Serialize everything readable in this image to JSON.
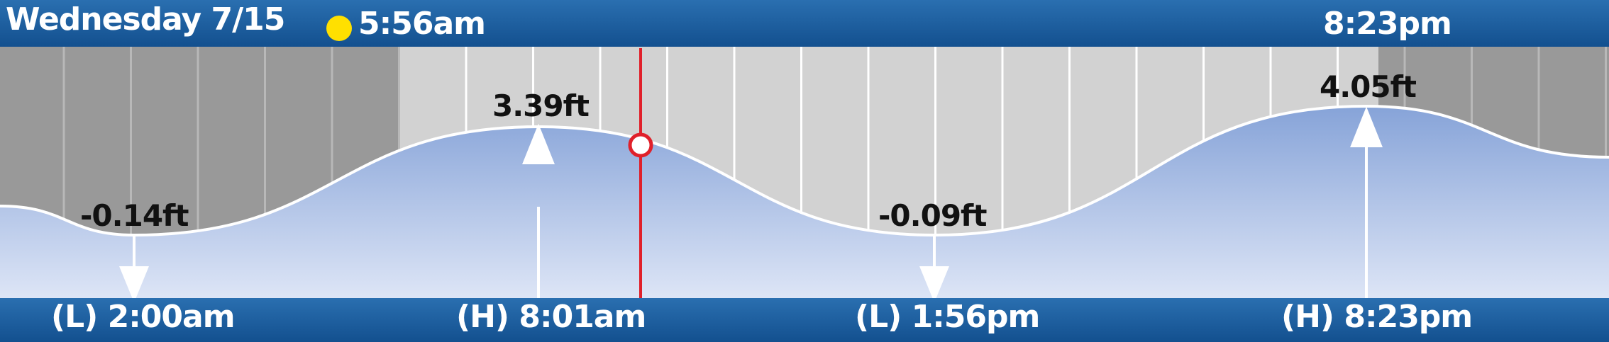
{
  "header": {
    "date": "Wednesday  7/15",
    "sunrise": "5:56am",
    "sunset": "8:23pm",
    "icons": {
      "sunrise": "sun-icon",
      "sunset": "moon-icon"
    }
  },
  "colors": {
    "bar": "#1a5c9e",
    "night_bg": "#999999",
    "day_bg": "#d2d2d2",
    "water_top": "#8aa6d8",
    "water_bottom": "#dbe3f5",
    "current_marker": "#e0202a"
  },
  "tides": [
    {
      "type": "L",
      "time": "2:00am",
      "height": "-0.14ft"
    },
    {
      "type": "H",
      "time": "8:01am",
      "height": "3.39ft"
    },
    {
      "type": "L",
      "time": "1:56pm",
      "height": "-0.09ft"
    },
    {
      "type": "H",
      "time": "8:23pm",
      "height": "4.05ft"
    }
  ],
  "tide_labels": {
    "t0": "(L) 2:00am",
    "t1": "(H) 8:01am",
    "t2": "(L) 1:56pm",
    "t3": "(H) 8:23pm"
  }
}
